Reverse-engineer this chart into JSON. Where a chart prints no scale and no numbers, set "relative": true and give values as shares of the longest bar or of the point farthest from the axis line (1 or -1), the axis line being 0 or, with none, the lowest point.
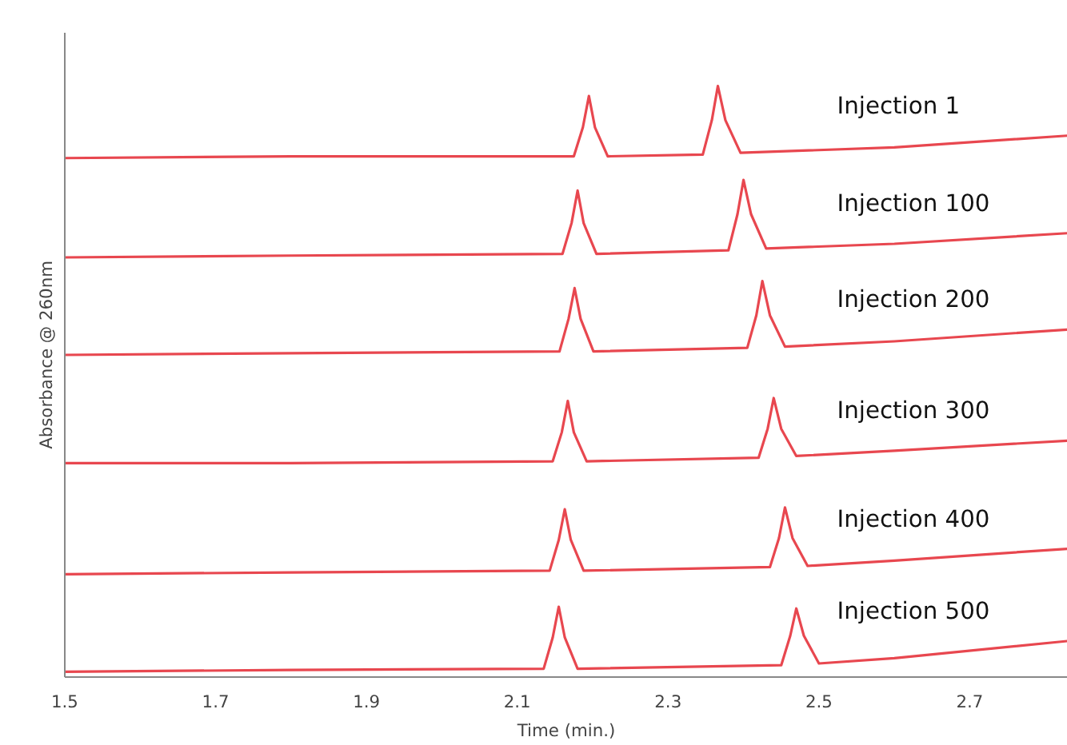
{
  "chart_data": {
    "type": "line",
    "relative": true,
    "xlabel": "Time (min.)",
    "ylabel": "Absorbance @ 260nm",
    "xlim": [
      1.5,
      2.83
    ],
    "xticks": [
      1.5,
      1.7,
      1.9,
      2.1,
      2.3,
      2.5,
      2.7
    ],
    "grid": false,
    "marker": "none",
    "line_style": "solid",
    "series": [
      {
        "name": "Injection 1",
        "color": "#e8474f",
        "x": [
          1.5,
          1.8,
          2.175,
          2.187,
          2.195,
          2.203,
          2.22,
          2.346,
          2.358,
          2.366,
          2.376,
          2.396,
          2.6,
          2.83
        ],
        "values": [
          0.878,
          0.881,
          0.881,
          0.93,
          0.983,
          0.93,
          0.881,
          0.884,
          0.942,
          1.0,
          0.942,
          0.887,
          0.896,
          0.916
        ]
      },
      {
        "name": "Injection 100",
        "color": "#e8474f",
        "x": [
          1.5,
          1.8,
          2.16,
          2.172,
          2.18,
          2.188,
          2.205,
          2.38,
          2.392,
          2.4,
          2.41,
          2.43,
          2.6,
          2.83
        ],
        "values": [
          0.71,
          0.713,
          0.716,
          0.768,
          0.823,
          0.768,
          0.716,
          0.722,
          0.783,
          0.841,
          0.783,
          0.725,
          0.733,
          0.751
        ]
      },
      {
        "name": "Injection 200",
        "color": "#e8474f",
        "x": [
          1.5,
          1.8,
          2.156,
          2.168,
          2.176,
          2.184,
          2.201,
          2.405,
          2.417,
          2.425,
          2.435,
          2.455,
          2.6,
          2.83
        ],
        "values": [
          0.545,
          0.548,
          0.551,
          0.606,
          0.658,
          0.606,
          0.551,
          0.557,
          0.612,
          0.67,
          0.612,
          0.559,
          0.568,
          0.588
        ]
      },
      {
        "name": "Injection 300",
        "color": "#e8474f",
        "x": [
          1.5,
          1.8,
          2.147,
          2.159,
          2.167,
          2.175,
          2.192,
          2.42,
          2.432,
          2.44,
          2.45,
          2.47,
          2.6,
          2.83
        ],
        "values": [
          0.362,
          0.362,
          0.365,
          0.414,
          0.467,
          0.414,
          0.365,
          0.371,
          0.42,
          0.472,
          0.42,
          0.374,
          0.383,
          0.4
        ]
      },
      {
        "name": "Injection 400",
        "color": "#e8474f",
        "x": [
          1.5,
          1.8,
          2.143,
          2.155,
          2.163,
          2.171,
          2.188,
          2.435,
          2.447,
          2.455,
          2.465,
          2.485,
          2.6,
          2.83
        ],
        "values": [
          0.174,
          0.177,
          0.18,
          0.232,
          0.284,
          0.232,
          0.18,
          0.186,
          0.235,
          0.287,
          0.235,
          0.188,
          0.197,
          0.217
        ]
      },
      {
        "name": "Injection 500",
        "color": "#e8474f",
        "x": [
          1.5,
          1.8,
          2.135,
          2.147,
          2.155,
          2.163,
          2.18,
          2.45,
          2.462,
          2.47,
          2.48,
          2.5,
          2.6,
          2.83
        ],
        "values": [
          0.009,
          0.012,
          0.014,
          0.067,
          0.119,
          0.067,
          0.014,
          0.02,
          0.07,
          0.116,
          0.07,
          0.023,
          0.032,
          0.061
        ]
      }
    ]
  }
}
